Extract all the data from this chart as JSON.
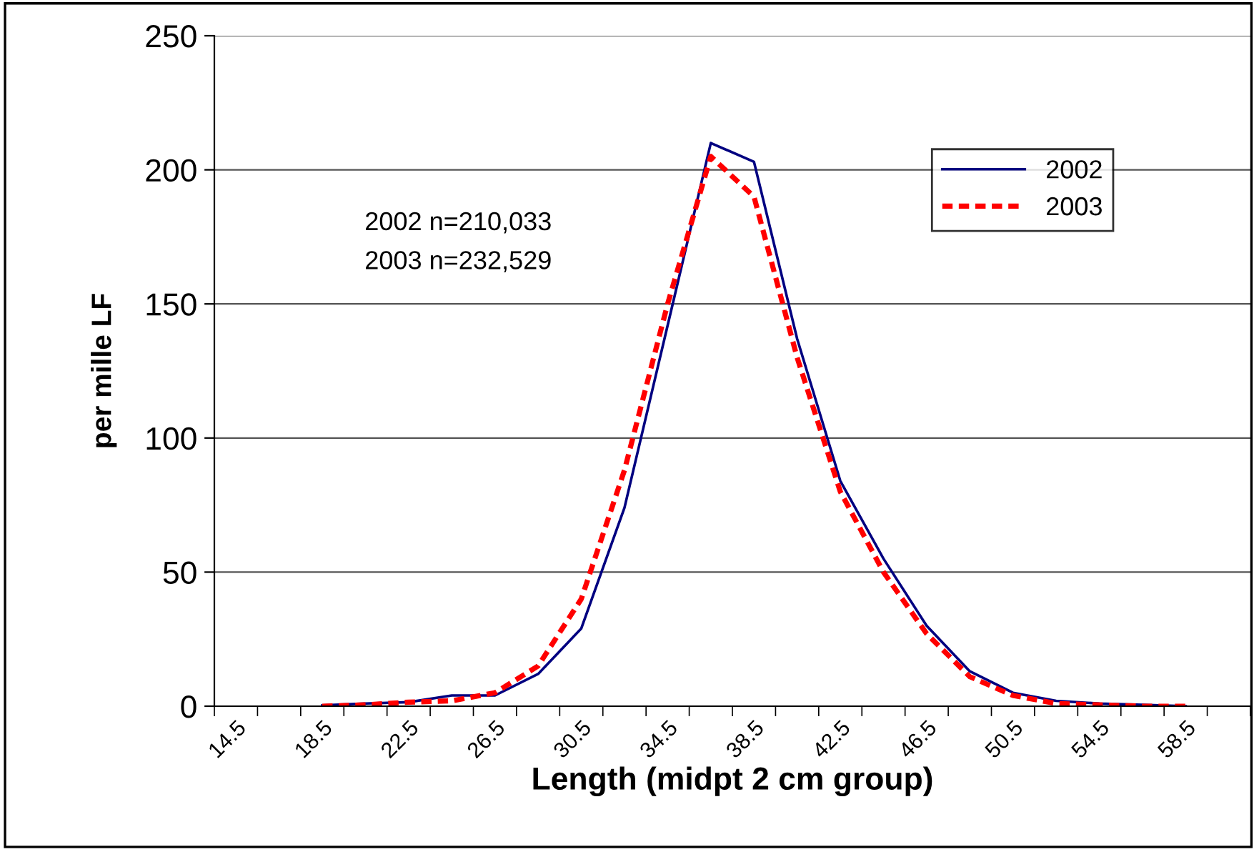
{
  "chart_data": {
    "type": "line",
    "xlabel": "Length (midpt 2 cm group)",
    "ylabel": "per mille LF",
    "categories": [
      "14.5",
      null,
      "18.5",
      null,
      "22.5",
      null,
      "26.5",
      null,
      "30.5",
      null,
      "34.5",
      null,
      "38.5",
      null,
      "42.5",
      null,
      "46.5",
      null,
      "50.5",
      null,
      "54.5",
      null,
      "58.5",
      null
    ],
    "series": [
      {
        "name": "2002",
        "color": "#000080",
        "line_style": "solid",
        "values": [
          null,
          null,
          0.3,
          1,
          1.5,
          4,
          4,
          12,
          29,
          74,
          142,
          210,
          203,
          137,
          84,
          55,
          30,
          13,
          5,
          2,
          1,
          0.5,
          0,
          null
        ]
      },
      {
        "name": "2003",
        "color": "#ff0000",
        "line_style": "dashed",
        "values": [
          null,
          null,
          0,
          0.5,
          1.5,
          2,
          5,
          15,
          40,
          88,
          150,
          205,
          190,
          130,
          80,
          50,
          27,
          11,
          4,
          1,
          0.5,
          0,
          0,
          null
        ]
      }
    ],
    "ylim": [
      0,
      250
    ],
    "yticks": [
      0,
      50,
      100,
      150,
      200,
      250
    ],
    "grid": "y",
    "legend": "top right",
    "marker": "none",
    "annotations": [
      "2002 n=210,033",
      "2003 n=232,529"
    ]
  }
}
